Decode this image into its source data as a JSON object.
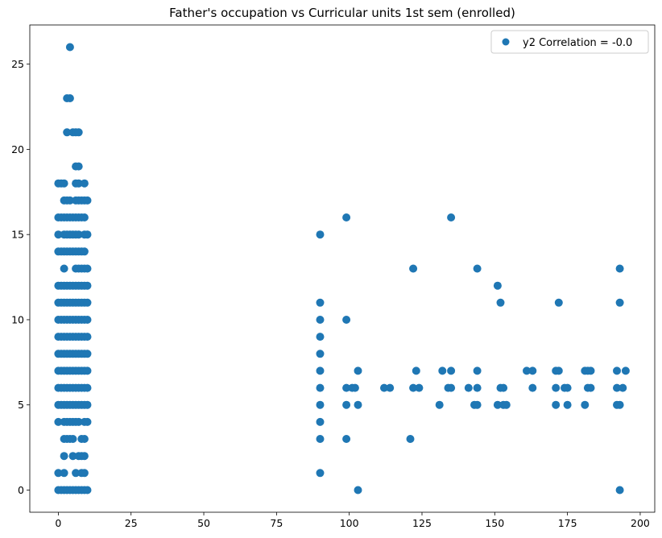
{
  "chart_data": {
    "type": "scatter",
    "title": "Father's occupation vs Curricular units 1st sem (enrolled)",
    "xlabel": "",
    "ylabel": "",
    "xlim": [
      -9.8,
      205
    ],
    "ylim": [
      -1.3,
      27.3
    ],
    "xticks": [
      0,
      25,
      50,
      75,
      100,
      125,
      150,
      175,
      200
    ],
    "yticks": [
      0,
      5,
      10,
      15,
      20,
      25
    ],
    "grid": false,
    "legend_position": "top-right",
    "color": "#1f77b4",
    "series": [
      {
        "name": "y2 Correlation = -0.0",
        "points": [
          [
            4,
            26
          ],
          [
            3,
            23
          ],
          [
            4,
            23
          ],
          [
            3,
            21
          ],
          [
            5,
            21
          ],
          [
            6,
            21
          ],
          [
            7,
            21
          ],
          [
            6,
            19
          ],
          [
            7,
            19
          ],
          [
            0,
            18
          ],
          [
            1,
            18
          ],
          [
            2,
            18
          ],
          [
            6,
            18
          ],
          [
            7,
            18
          ],
          [
            9,
            18
          ],
          [
            2,
            17
          ],
          [
            3,
            17
          ],
          [
            4,
            17
          ],
          [
            6,
            17
          ],
          [
            7,
            17
          ],
          [
            8,
            17
          ],
          [
            9,
            17
          ],
          [
            10,
            17
          ],
          [
            0,
            16
          ],
          [
            1,
            16
          ],
          [
            2,
            16
          ],
          [
            3,
            16
          ],
          [
            4,
            16
          ],
          [
            5,
            16
          ],
          [
            6,
            16
          ],
          [
            7,
            16
          ],
          [
            8,
            16
          ],
          [
            9,
            16
          ],
          [
            0,
            15
          ],
          [
            2,
            15
          ],
          [
            3,
            15
          ],
          [
            4,
            15
          ],
          [
            5,
            15
          ],
          [
            6,
            15
          ],
          [
            7,
            15
          ],
          [
            9,
            15
          ],
          [
            10,
            15
          ],
          [
            0,
            14
          ],
          [
            1,
            14
          ],
          [
            2,
            14
          ],
          [
            3,
            14
          ],
          [
            4,
            14
          ],
          [
            5,
            14
          ],
          [
            6,
            14
          ],
          [
            7,
            14
          ],
          [
            8,
            14
          ],
          [
            9,
            14
          ],
          [
            2,
            13
          ],
          [
            6,
            13
          ],
          [
            7,
            13
          ],
          [
            8,
            13
          ],
          [
            9,
            13
          ],
          [
            10,
            13
          ],
          [
            0,
            12
          ],
          [
            1,
            12
          ],
          [
            2,
            12
          ],
          [
            3,
            12
          ],
          [
            4,
            12
          ],
          [
            5,
            12
          ],
          [
            6,
            12
          ],
          [
            7,
            12
          ],
          [
            8,
            12
          ],
          [
            9,
            12
          ],
          [
            10,
            12
          ],
          [
            0,
            11
          ],
          [
            1,
            11
          ],
          [
            2,
            11
          ],
          [
            3,
            11
          ],
          [
            4,
            11
          ],
          [
            5,
            11
          ],
          [
            6,
            11
          ],
          [
            7,
            11
          ],
          [
            8,
            11
          ],
          [
            9,
            11
          ],
          [
            10,
            11
          ],
          [
            0,
            10
          ],
          [
            1,
            10
          ],
          [
            2,
            10
          ],
          [
            3,
            10
          ],
          [
            4,
            10
          ],
          [
            5,
            10
          ],
          [
            6,
            10
          ],
          [
            7,
            10
          ],
          [
            8,
            10
          ],
          [
            9,
            10
          ],
          [
            10,
            10
          ],
          [
            0,
            9
          ],
          [
            1,
            9
          ],
          [
            2,
            9
          ],
          [
            3,
            9
          ],
          [
            4,
            9
          ],
          [
            5,
            9
          ],
          [
            6,
            9
          ],
          [
            7,
            9
          ],
          [
            8,
            9
          ],
          [
            9,
            9
          ],
          [
            10,
            9
          ],
          [
            0,
            8
          ],
          [
            1,
            8
          ],
          [
            2,
            8
          ],
          [
            3,
            8
          ],
          [
            4,
            8
          ],
          [
            5,
            8
          ],
          [
            6,
            8
          ],
          [
            7,
            8
          ],
          [
            8,
            8
          ],
          [
            9,
            8
          ],
          [
            10,
            8
          ],
          [
            0,
            7
          ],
          [
            1,
            7
          ],
          [
            2,
            7
          ],
          [
            3,
            7
          ],
          [
            4,
            7
          ],
          [
            5,
            7
          ],
          [
            6,
            7
          ],
          [
            7,
            7
          ],
          [
            8,
            7
          ],
          [
            9,
            7
          ],
          [
            10,
            7
          ],
          [
            0,
            6
          ],
          [
            1,
            6
          ],
          [
            2,
            6
          ],
          [
            3,
            6
          ],
          [
            4,
            6
          ],
          [
            5,
            6
          ],
          [
            6,
            6
          ],
          [
            7,
            6
          ],
          [
            8,
            6
          ],
          [
            9,
            6
          ],
          [
            10,
            6
          ],
          [
            0,
            5
          ],
          [
            1,
            5
          ],
          [
            2,
            5
          ],
          [
            3,
            5
          ],
          [
            4,
            5
          ],
          [
            5,
            5
          ],
          [
            6,
            5
          ],
          [
            7,
            5
          ],
          [
            8,
            5
          ],
          [
            9,
            5
          ],
          [
            10,
            5
          ],
          [
            0,
            4
          ],
          [
            2,
            4
          ],
          [
            3,
            4
          ],
          [
            4,
            4
          ],
          [
            5,
            4
          ],
          [
            6,
            4
          ],
          [
            7,
            4
          ],
          [
            9,
            4
          ],
          [
            10,
            4
          ],
          [
            2,
            3
          ],
          [
            3,
            3
          ],
          [
            4,
            3
          ],
          [
            5,
            3
          ],
          [
            8,
            3
          ],
          [
            9,
            3
          ],
          [
            2,
            2
          ],
          [
            5,
            2
          ],
          [
            7,
            2
          ],
          [
            8,
            2
          ],
          [
            9,
            2
          ],
          [
            0,
            1
          ],
          [
            2,
            1
          ],
          [
            6,
            1
          ],
          [
            8,
            1
          ],
          [
            9,
            1
          ],
          [
            0,
            0
          ],
          [
            1,
            0
          ],
          [
            2,
            0
          ],
          [
            3,
            0
          ],
          [
            4,
            0
          ],
          [
            5,
            0
          ],
          [
            6,
            0
          ],
          [
            7,
            0
          ],
          [
            8,
            0
          ],
          [
            9,
            0
          ],
          [
            10,
            0
          ],
          [
            90,
            15
          ],
          [
            90,
            11
          ],
          [
            90,
            10
          ],
          [
            90,
            9
          ],
          [
            90,
            8
          ],
          [
            90,
            7
          ],
          [
            90,
            6
          ],
          [
            90,
            5
          ],
          [
            90,
            4
          ],
          [
            90,
            3
          ],
          [
            90,
            1
          ],
          [
            99,
            16
          ],
          [
            99,
            10
          ],
          [
            99,
            6
          ],
          [
            99,
            5
          ],
          [
            99,
            3
          ],
          [
            101,
            6
          ],
          [
            102,
            6
          ],
          [
            103,
            7
          ],
          [
            103,
            5
          ],
          [
            103,
            0
          ],
          [
            112,
            6
          ],
          [
            114,
            6
          ],
          [
            121,
            3
          ],
          [
            122,
            13
          ],
          [
            122,
            6
          ],
          [
            123,
            7
          ],
          [
            124,
            6
          ],
          [
            131,
            5
          ],
          [
            132,
            7
          ],
          [
            134,
            6
          ],
          [
            135,
            16
          ],
          [
            135,
            7
          ],
          [
            135,
            6
          ],
          [
            141,
            6
          ],
          [
            143,
            5
          ],
          [
            144,
            13
          ],
          [
            144,
            7
          ],
          [
            144,
            6
          ],
          [
            144,
            5
          ],
          [
            151,
            12
          ],
          [
            151,
            5
          ],
          [
            152,
            11
          ],
          [
            152,
            6
          ],
          [
            153,
            6
          ],
          [
            153,
            5
          ],
          [
            154,
            5
          ],
          [
            161,
            7
          ],
          [
            163,
            7
          ],
          [
            163,
            6
          ],
          [
            171,
            7
          ],
          [
            171,
            6
          ],
          [
            171,
            5
          ],
          [
            172,
            11
          ],
          [
            172,
            7
          ],
          [
            174,
            6
          ],
          [
            175,
            6
          ],
          [
            175,
            5
          ],
          [
            181,
            7
          ],
          [
            181,
            5
          ],
          [
            182,
            7
          ],
          [
            182,
            6
          ],
          [
            183,
            7
          ],
          [
            183,
            6
          ],
          [
            192,
            7
          ],
          [
            192,
            6
          ],
          [
            192,
            5
          ],
          [
            193,
            13
          ],
          [
            193,
            11
          ],
          [
            193,
            5
          ],
          [
            193,
            0
          ],
          [
            194,
            6
          ],
          [
            195,
            7
          ]
        ]
      }
    ]
  }
}
